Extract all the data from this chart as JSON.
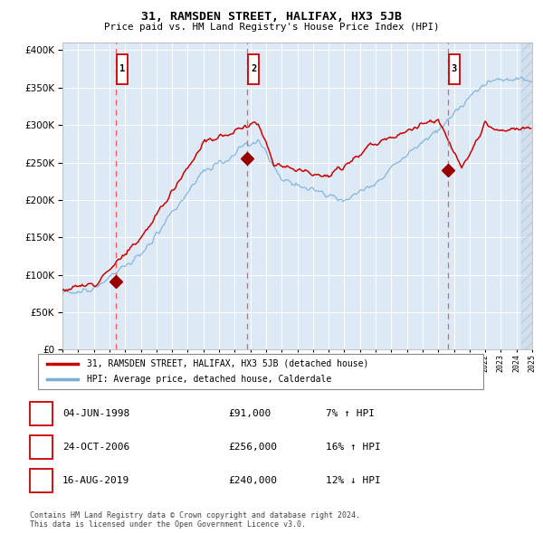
{
  "title": "31, RAMSDEN STREET, HALIFAX, HX3 5JB",
  "subtitle": "Price paid vs. HM Land Registry's House Price Index (HPI)",
  "legend_line1": "31, RAMSDEN STREET, HALIFAX, HX3 5JB (detached house)",
  "legend_line2": "HPI: Average price, detached house, Calderdale",
  "table_rows": [
    {
      "num": "1",
      "date": "04-JUN-1998",
      "price": "£91,000",
      "change": "7% ↑ HPI"
    },
    {
      "num": "2",
      "date": "24-OCT-2006",
      "price": "£256,000",
      "change": "16% ↑ HPI"
    },
    {
      "num": "3",
      "date": "16-AUG-2019",
      "price": "£240,000",
      "change": "12% ↓ HPI"
    }
  ],
  "footnote": "Contains HM Land Registry data © Crown copyright and database right 2024.\nThis data is licensed under the Open Government Licence v3.0.",
  "hpi_color": "#7ab0d8",
  "price_color": "#cc0000",
  "marker_color": "#990000",
  "vline_color": "#ff5555",
  "bg_color": "#ddeaf6",
  "grid_color": "#ffffff",
  "ylim": [
    0,
    410000
  ],
  "yticks": [
    0,
    50000,
    100000,
    150000,
    200000,
    250000,
    300000,
    350000,
    400000
  ],
  "sale1_year": 1998.42,
  "sale1_price": 91000,
  "sale2_year": 2006.81,
  "sale2_price": 256000,
  "sale3_year": 2019.62,
  "sale3_price": 240000,
  "xmin": 1995,
  "xmax": 2025
}
